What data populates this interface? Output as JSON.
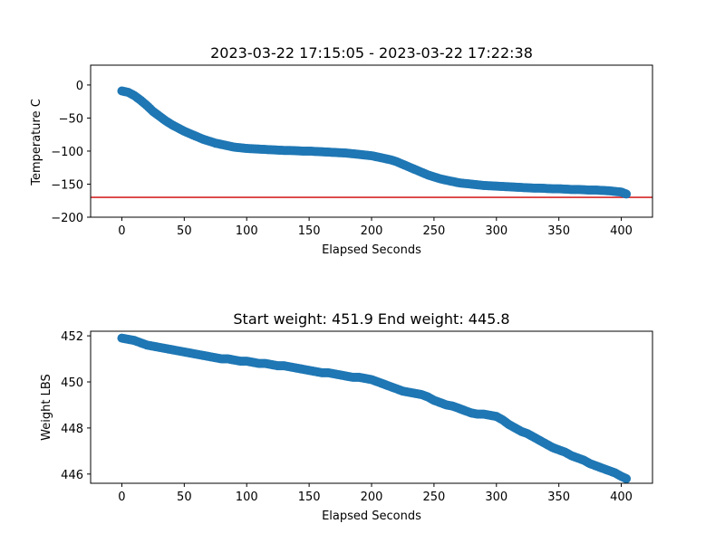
{
  "chart_data": [
    {
      "type": "scatter",
      "title": "2023-03-22 17:15:05 - 2023-03-22 17:22:38",
      "xlabel": "Elapsed Seconds",
      "ylabel": "Temperature C",
      "xlim": [
        -25,
        425
      ],
      "ylim": [
        -200,
        30
      ],
      "xticks": [
        0,
        50,
        100,
        150,
        200,
        250,
        300,
        350,
        400
      ],
      "yticks": [
        0,
        -50,
        -100,
        -150,
        -200
      ],
      "marker_color": "#1f77b4",
      "reference_line": {
        "y": -170,
        "color": "#d62728"
      },
      "grid": false,
      "series": [
        {
          "x": [
            0,
            5,
            10,
            15,
            20,
            25,
            30,
            35,
            40,
            45,
            50,
            55,
            60,
            65,
            70,
            75,
            80,
            85,
            90,
            95,
            100,
            105,
            110,
            115,
            120,
            125,
            130,
            135,
            140,
            145,
            150,
            155,
            160,
            165,
            170,
            175,
            180,
            185,
            190,
            195,
            200,
            205,
            210,
            215,
            220,
            225,
            230,
            235,
            240,
            245,
            250,
            255,
            260,
            265,
            270,
            275,
            280,
            285,
            290,
            295,
            300,
            305,
            310,
            315,
            320,
            325,
            330,
            335,
            340,
            345,
            350,
            355,
            360,
            365,
            370,
            375,
            380,
            385,
            390,
            395,
            400,
            404
          ],
          "y": [
            -9,
            -11,
            -16,
            -23,
            -31,
            -40,
            -47,
            -54,
            -60,
            -65,
            -70,
            -74,
            -78,
            -82,
            -85,
            -88,
            -90,
            -92,
            -94,
            -95,
            -96,
            -96.5,
            -97,
            -97.5,
            -98,
            -98.5,
            -99,
            -99,
            -99.5,
            -100,
            -100,
            -100.5,
            -101,
            -101.5,
            -102,
            -102.5,
            -103,
            -104,
            -105,
            -106,
            -107,
            -109,
            -111,
            -113,
            -116,
            -120,
            -124,
            -128,
            -132,
            -136,
            -139,
            -142,
            -144,
            -146,
            -148,
            -149,
            -150,
            -151,
            -152,
            -152.5,
            -153,
            -153.5,
            -154,
            -154.5,
            -155,
            -155.5,
            -156,
            -156,
            -156.5,
            -157,
            -157,
            -157.5,
            -158,
            -158,
            -158.5,
            -159,
            -159,
            -159.5,
            -160,
            -161,
            -162,
            -165
          ]
        }
      ]
    },
    {
      "type": "scatter",
      "title": "Start weight: 451.9 End weight: 445.8",
      "xlabel": "Elapsed Seconds",
      "ylabel": "Weight LBS",
      "xlim": [
        -25,
        425
      ],
      "ylim": [
        445.6,
        452.2
      ],
      "xticks": [
        0,
        50,
        100,
        150,
        200,
        250,
        300,
        350,
        400
      ],
      "yticks": [
        452,
        450,
        448,
        446
      ],
      "marker_color": "#1f77b4",
      "grid": false,
      "series": [
        {
          "x": [
            0,
            5,
            10,
            15,
            20,
            25,
            30,
            35,
            40,
            45,
            50,
            55,
            60,
            65,
            70,
            75,
            80,
            85,
            90,
            95,
            100,
            105,
            110,
            115,
            120,
            125,
            130,
            135,
            140,
            145,
            150,
            155,
            160,
            165,
            170,
            175,
            180,
            185,
            190,
            195,
            200,
            205,
            210,
            215,
            220,
            225,
            230,
            235,
            240,
            245,
            250,
            255,
            260,
            265,
            270,
            275,
            280,
            285,
            290,
            295,
            300,
            305,
            310,
            315,
            320,
            325,
            330,
            335,
            340,
            345,
            350,
            355,
            360,
            365,
            370,
            375,
            380,
            385,
            390,
            395,
            400,
            404
          ],
          "y": [
            451.9,
            451.85,
            451.8,
            451.7,
            451.6,
            451.55,
            451.5,
            451.45,
            451.4,
            451.35,
            451.3,
            451.25,
            451.2,
            451.15,
            451.1,
            451.05,
            451.0,
            451.0,
            450.95,
            450.9,
            450.9,
            450.85,
            450.8,
            450.8,
            450.75,
            450.7,
            450.7,
            450.65,
            450.6,
            450.55,
            450.5,
            450.45,
            450.4,
            450.4,
            450.35,
            450.3,
            450.25,
            450.2,
            450.2,
            450.15,
            450.1,
            450.0,
            449.9,
            449.8,
            449.7,
            449.6,
            449.55,
            449.5,
            449.45,
            449.35,
            449.2,
            449.1,
            449.0,
            448.95,
            448.85,
            448.75,
            448.65,
            448.6,
            448.6,
            448.55,
            448.5,
            448.35,
            448.15,
            448.0,
            447.85,
            447.75,
            447.6,
            447.45,
            447.3,
            447.15,
            447.05,
            446.95,
            446.8,
            446.7,
            446.6,
            446.45,
            446.35,
            446.25,
            446.15,
            446.05,
            445.9,
            445.8
          ]
        }
      ]
    }
  ]
}
